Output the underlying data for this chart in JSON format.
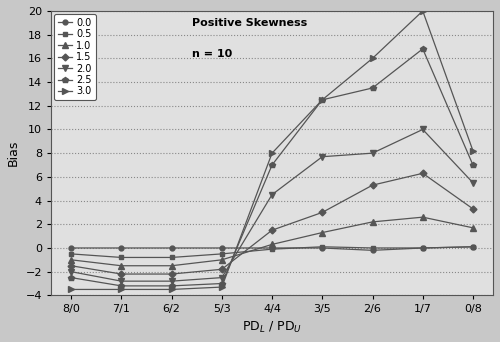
{
  "x_labels": [
    "8/0",
    "7/1",
    "6/2",
    "5/3",
    "4/4",
    "3/5",
    "2/6",
    "1/7",
    "0/8"
  ],
  "series": {
    "0.0": [
      0.0,
      0.0,
      0.0,
      0.0,
      0.0,
      0.0,
      -0.2,
      0.0,
      0.1
    ],
    "0.5": [
      -0.5,
      -0.8,
      -0.8,
      -0.5,
      -0.1,
      0.1,
      0.0,
      0.0,
      0.1
    ],
    "1.0": [
      -1.0,
      -1.5,
      -1.5,
      -1.0,
      0.3,
      1.3,
      2.2,
      2.6,
      1.7
    ],
    "1.5": [
      -1.5,
      -2.2,
      -2.2,
      -1.8,
      1.5,
      3.0,
      5.3,
      6.3,
      3.3
    ],
    "2.0": [
      -2.0,
      -2.8,
      -2.8,
      -2.5,
      4.5,
      7.7,
      8.0,
      10.0,
      5.5
    ],
    "2.5": [
      -2.5,
      -3.2,
      -3.2,
      -3.0,
      7.0,
      12.5,
      13.5,
      16.8,
      7.0
    ],
    "3.0": [
      -3.5,
      -3.5,
      -3.5,
      -3.3,
      8.0,
      12.5,
      16.0,
      20.0,
      8.2
    ]
  },
  "legend_labels": [
    "0.0",
    "0.5",
    "1.0",
    "1.5",
    "2.0",
    "2.5",
    "3.0"
  ],
  "markers": [
    "o",
    "s",
    "^",
    "D",
    "v",
    "p",
    ">"
  ],
  "title_text": "Positive Skewness",
  "subtitle_text": "n = 10",
  "xlabel_left": "PD",
  "xlabel_sub_L": "L",
  "xlabel_mid": " / PD",
  "xlabel_sub_U": "U",
  "ylabel": "Bias",
  "ylim": [
    -4,
    20
  ],
  "yticks": [
    -4,
    -2,
    0,
    2,
    4,
    6,
    8,
    10,
    12,
    14,
    16,
    18,
    20
  ],
  "line_color": "#555555",
  "bg_color": "#e8e8e8",
  "fig_bg": "#d8d8d8"
}
